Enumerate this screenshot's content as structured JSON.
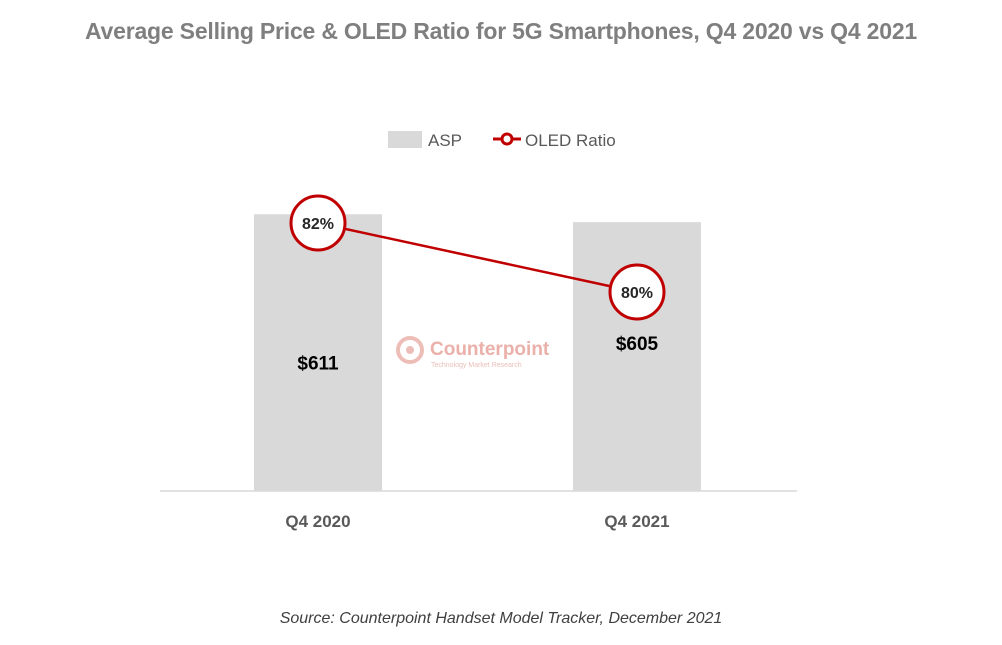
{
  "chart_data": {
    "type": "bar",
    "title": "Average Selling Price & OLED Ratio for 5G Smartphones, Q4 2020 vs Q4 2021",
    "categories": [
      "Q4 2020",
      "Q4 2021"
    ],
    "series": [
      {
        "name": "ASP",
        "kind": "bar",
        "values": [
          611,
          605
        ],
        "labels": [
          "$611",
          "$605"
        ]
      },
      {
        "name": "OLED Ratio",
        "kind": "line",
        "values": [
          82,
          80
        ],
        "labels": [
          "82%",
          "80%"
        ]
      }
    ],
    "legend": [
      "ASP",
      "OLED Ratio"
    ],
    "legend_position": "top-center",
    "grid": false
  },
  "colors": {
    "bar": "#d9d9d9",
    "line": "#c00000",
    "axis": "#d9d9d9"
  },
  "watermark": {
    "name": "Counterpoint",
    "sub": "Technology Market Research"
  },
  "source": "Source: Counterpoint Handset Model Tracker, December 2021"
}
